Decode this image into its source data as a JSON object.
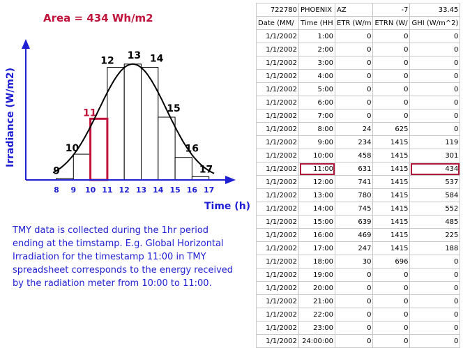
{
  "diagram": {
    "area_label": "Area = 434 Wh/m2",
    "y_axis_label": "Irradiance (W/m2)",
    "x_axis_label": "Time (h)",
    "highlight_label": "11"
  },
  "chart_data": {
    "type": "bar",
    "title": "Area = 434 Wh/m2",
    "xlabel": "Time (h)",
    "ylabel": "Irradiance (W/m2)",
    "x_ticks": [
      8,
      9,
      10,
      11,
      12,
      13,
      14,
      15,
      16,
      17
    ],
    "hour_labels": [
      "9",
      "10",
      "11",
      "12",
      "13",
      "14",
      "15",
      "16",
      "17"
    ],
    "intervals": [
      [
        8,
        9
      ],
      [
        9,
        10
      ],
      [
        10,
        11
      ],
      [
        11,
        12
      ],
      [
        12,
        13
      ],
      [
        13,
        14
      ],
      [
        14,
        15
      ],
      [
        15,
        16
      ],
      [
        16,
        17
      ]
    ],
    "bar_values_W_per_m2": [
      5,
      80,
      190,
      350,
      360,
      350,
      195,
      70,
      10
    ],
    "highlight_hour": "11",
    "curve": "bell",
    "xlim": [
      7,
      18
    ],
    "ylim": [
      0,
      390
    ]
  },
  "note": "TMY data is collected during the 1hr period\nending at the timstamp. E.g. Global Horizontal\nIrradiation for the timestamp 11:00 in TMY\nspreadsheet corresponds to the energy received\nby the radiation meter from 10:00 to 11:00.",
  "sheet": {
    "header_row": [
      "722780",
      "PHOENIX",
      "AZ",
      "-7",
      "33.45"
    ],
    "columns": [
      "Date (MM/",
      "Time (HH",
      "ETR (W/m",
      "ETRN (W/",
      "GHI (W/m^2)"
    ],
    "rows": [
      [
        "1/1/2002",
        "1:00",
        "0",
        "0",
        "0"
      ],
      [
        "1/1/2002",
        "2:00",
        "0",
        "0",
        "0"
      ],
      [
        "1/1/2002",
        "3:00",
        "0",
        "0",
        "0"
      ],
      [
        "1/1/2002",
        "4:00",
        "0",
        "0",
        "0"
      ],
      [
        "1/1/2002",
        "5:00",
        "0",
        "0",
        "0"
      ],
      [
        "1/1/2002",
        "6:00",
        "0",
        "0",
        "0"
      ],
      [
        "1/1/2002",
        "7:00",
        "0",
        "0",
        "0"
      ],
      [
        "1/1/2002",
        "8:00",
        "24",
        "625",
        "0"
      ],
      [
        "1/1/2002",
        "9:00",
        "234",
        "1415",
        "119"
      ],
      [
        "1/1/2002",
        "10:00",
        "458",
        "1415",
        "301"
      ],
      [
        "1/1/2002",
        "11:00",
        "631",
        "1415",
        "434"
      ],
      [
        "1/1/2002",
        "12:00",
        "741",
        "1415",
        "537"
      ],
      [
        "1/1/2002",
        "13:00",
        "780",
        "1415",
        "584"
      ],
      [
        "1/1/2002",
        "14:00",
        "745",
        "1415",
        "552"
      ],
      [
        "1/1/2002",
        "15:00",
        "639",
        "1415",
        "485"
      ],
      [
        "1/1/2002",
        "16:00",
        "469",
        "1415",
        "225"
      ],
      [
        "1/1/2002",
        "17:00",
        "247",
        "1415",
        "188"
      ],
      [
        "1/1/2002",
        "18:00",
        "30",
        "696",
        "0"
      ],
      [
        "1/1/2002",
        "19:00",
        "0",
        "0",
        "0"
      ],
      [
        "1/1/2002",
        "20:00",
        "0",
        "0",
        "0"
      ],
      [
        "1/1/2002",
        "21:00",
        "0",
        "0",
        "0"
      ],
      [
        "1/1/2002",
        "22:00",
        "0",
        "0",
        "0"
      ],
      [
        "1/1/2002",
        "23:00",
        "0",
        "0",
        "0"
      ],
      [
        "1/1/2002",
        "24:00:00",
        "0",
        "0",
        "0"
      ]
    ],
    "highlight_row_time": "11:00"
  },
  "colors": {
    "axis_blue": "#1f1fd4",
    "highlight_red": "#c0143c",
    "curve": "#000000",
    "bar_edge": "#000000",
    "bar_fill": "#ffffff"
  }
}
